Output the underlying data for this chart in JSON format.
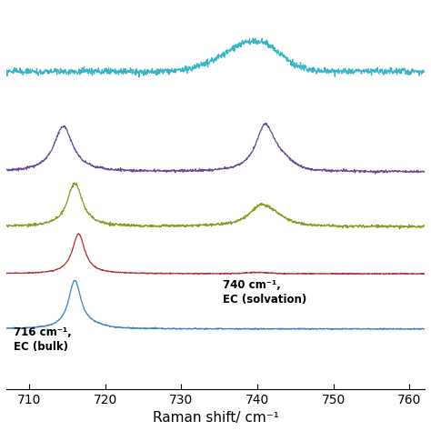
{
  "x_min": 707,
  "x_max": 762,
  "x_ticks": [
    710,
    720,
    730,
    740,
    750,
    760
  ],
  "xlabel": "Raman shift/ cm⁻¹",
  "background_color": "#ffffff",
  "colors": {
    "blue": "#3a80c0",
    "red": "#b03030",
    "olive": "#8b9a20",
    "purple": "#6a4898",
    "cyan": "#35b5c5"
  },
  "offsets": [
    0.0,
    0.13,
    0.24,
    0.37,
    0.6
  ],
  "peak716_label": "716 cm⁻¹,\nEC (bulk)",
  "peak740_label": "740 cm⁻¹,\nEC (solvation)"
}
